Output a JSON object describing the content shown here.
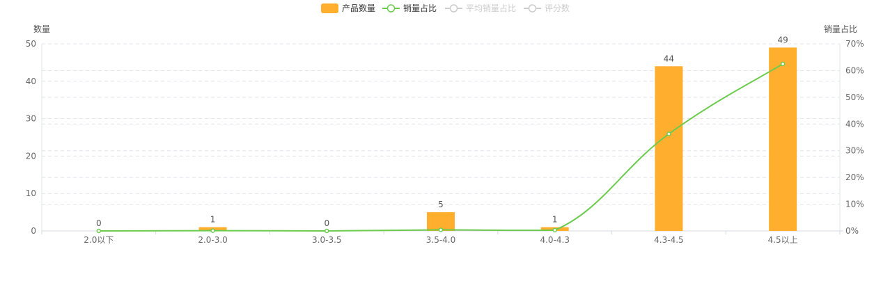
{
  "chart_data": {
    "type": "bar",
    "categories": [
      "2.0以下",
      "2.0-3.0",
      "3.0-3.5",
      "3.5-4.0",
      "4.0-4.3",
      "4.3-4.5",
      "4.5以上"
    ],
    "series": [
      {
        "name": "产品数量",
        "type": "bar",
        "axis": "left",
        "values": [
          0,
          1,
          0,
          5,
          1,
          44,
          49
        ],
        "color": "#FFAE2E",
        "labels": true
      },
      {
        "name": "销量占比",
        "type": "line",
        "axis": "right",
        "values": [
          0,
          0.1,
          0,
          0.4,
          0.3,
          36.3,
          62.5
        ],
        "color": "#6CCB4D",
        "smooth": true
      }
    ],
    "inactive_legend": [
      "平均销量占比",
      "评分数"
    ],
    "y_left": {
      "label": "数量",
      "range": [
        0,
        50
      ],
      "ticks": [
        0,
        10,
        20,
        30,
        40,
        50
      ]
    },
    "y_right": {
      "label": "销量占比",
      "range": [
        0,
        70
      ],
      "ticks": [
        "0%",
        "10%",
        "20%",
        "30%",
        "40%",
        "50%",
        "60%",
        "70%"
      ]
    },
    "grid": true,
    "legend_position": "top-center"
  }
}
